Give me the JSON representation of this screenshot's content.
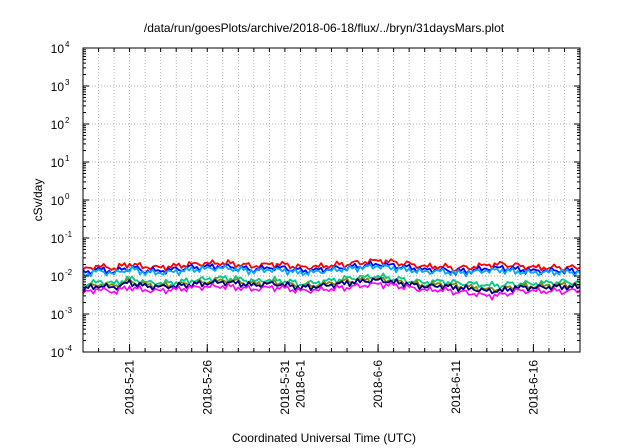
{
  "chart_data": {
    "type": "line",
    "title": "/data/run/goesPlots/archive/2018-06-18/flux/../bryn/31daysMars.plot",
    "xlabel": "Coordinated Universal Time (UTC)",
    "ylabel": "cSv/day",
    "x_range": [
      "2018-05-18",
      "2018-06-19"
    ],
    "y_scale": "log",
    "ylim": [
      0.0001,
      10000
    ],
    "y_ticks": [
      {
        "base": "10",
        "exp": "-4"
      },
      {
        "base": "10",
        "exp": "-3"
      },
      {
        "base": "10",
        "exp": "-2"
      },
      {
        "base": "10",
        "exp": "-1"
      },
      {
        "base": "10",
        "exp": "0"
      },
      {
        "base": "10",
        "exp": "1"
      },
      {
        "base": "10",
        "exp": "2"
      },
      {
        "base": "10",
        "exp": "3"
      },
      {
        "base": "10",
        "exp": "4"
      }
    ],
    "x_ticks": [
      "2018-5-21",
      "2018-5-26",
      "2018-5-31",
      "2018-6-1",
      "2018-6-6",
      "2018-6-11",
      "2018-6-16"
    ],
    "x_tick_days": [
      3,
      8,
      13,
      14,
      19,
      24,
      29
    ],
    "grid": true,
    "legend": "none",
    "series": [
      {
        "color": "#ff0000",
        "values": [
          0.0145,
          0.0185,
          0.016,
          0.0215,
          0.0175,
          0.0168,
          0.018,
          0.02,
          0.0215,
          0.0225,
          0.021,
          0.0185,
          0.0205,
          0.0195,
          0.0165,
          0.0175,
          0.0195,
          0.0215,
          0.0235,
          0.0255,
          0.0225,
          0.02,
          0.0175,
          0.0185,
          0.0165,
          0.0175,
          0.0195,
          0.02,
          0.018,
          0.0168,
          0.017,
          0.0175,
          0.0168
        ]
      },
      {
        "color": "#0000ff",
        "values": [
          0.0118,
          0.015,
          0.013,
          0.0175,
          0.0142,
          0.0136,
          0.0146,
          0.0163,
          0.0175,
          0.0183,
          0.017,
          0.015,
          0.0167,
          0.0158,
          0.0134,
          0.0142,
          0.0158,
          0.0175,
          0.019,
          0.0207,
          0.0183,
          0.0163,
          0.0142,
          0.015,
          0.0134,
          0.0142,
          0.0158,
          0.0163,
          0.0146,
          0.0136,
          0.0138,
          0.0142,
          0.0136
        ]
      },
      {
        "color": "#00aaff",
        "values": [
          0.0105,
          0.0134,
          0.0116,
          0.0156,
          0.0127,
          0.0122,
          0.013,
          0.0145,
          0.0156,
          0.0163,
          0.0152,
          0.0134,
          0.0149,
          0.0141,
          0.012,
          0.0127,
          0.0141,
          0.0156,
          0.017,
          0.0185,
          0.0163,
          0.0145,
          0.0127,
          0.0134,
          0.012,
          0.0127,
          0.0141,
          0.0145,
          0.013,
          0.0122,
          0.0123,
          0.0127,
          0.0122
        ]
      },
      {
        "color": "#00cc88",
        "values": [
          0.0058,
          0.0072,
          0.0063,
          0.0085,
          0.0068,
          0.0066,
          0.007,
          0.0078,
          0.0084,
          0.0088,
          0.0082,
          0.0072,
          0.008,
          0.0076,
          0.0064,
          0.0068,
          0.0076,
          0.0084,
          0.0092,
          0.01,
          0.0088,
          0.0078,
          0.0068,
          0.0072,
          0.0064,
          0.0062,
          0.0058,
          0.006,
          0.0066,
          0.0064,
          0.0066,
          0.0068,
          0.0066
        ]
      },
      {
        "color": "#888800",
        "values": [
          0.0049,
          0.0061,
          0.0053,
          0.0071,
          0.0058,
          0.0056,
          0.0059,
          0.0066,
          0.0071,
          0.0074,
          0.0069,
          0.0061,
          0.0068,
          0.0064,
          0.0054,
          0.0058,
          0.0064,
          0.0071,
          0.0077,
          0.0084,
          0.0074,
          0.0066,
          0.0058,
          0.0061,
          0.0054,
          0.005,
          0.0045,
          0.0046,
          0.0055,
          0.0054,
          0.0056,
          0.0058,
          0.0056
        ]
      },
      {
        "color": "#000080",
        "values": [
          0.0045,
          0.0056,
          0.0049,
          0.0066,
          0.0053,
          0.0052,
          0.0055,
          0.0061,
          0.0066,
          0.0069,
          0.0064,
          0.0056,
          0.0063,
          0.0059,
          0.005,
          0.0053,
          0.0059,
          0.0066,
          0.0072,
          0.0078,
          0.0069,
          0.0061,
          0.0053,
          0.0056,
          0.005,
          0.0046,
          0.004,
          0.0041,
          0.005,
          0.005,
          0.0052,
          0.0053,
          0.0052
        ]
      },
      {
        "color": "#ff00ff",
        "values": [
          0.0036,
          0.0045,
          0.0039,
          0.0052,
          0.0042,
          0.0041,
          0.0044,
          0.0049,
          0.0052,
          0.0055,
          0.0051,
          0.0045,
          0.005,
          0.0047,
          0.004,
          0.0042,
          0.0047,
          0.0052,
          0.0057,
          0.0062,
          0.0055,
          0.0049,
          0.0042,
          0.0045,
          0.004,
          0.0036,
          0.003,
          0.0031,
          0.004,
          0.004,
          0.0041,
          0.0042,
          0.0041
        ]
      }
    ]
  }
}
